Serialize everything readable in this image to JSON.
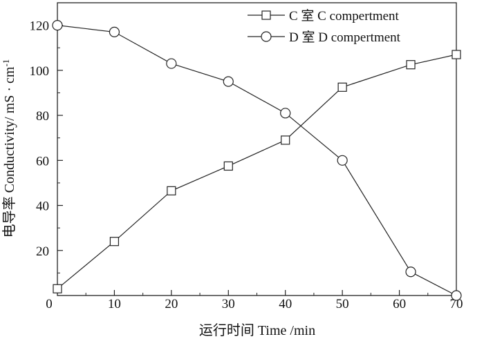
{
  "chart_data": {
    "type": "line",
    "xlabel": "运行时间 Time /min",
    "ylabel": "电导率 Conductivity/ mS · cm",
    "ylabel_superscript": "-1",
    "xlim": [
      0,
      70
    ],
    "ylim": [
      0,
      130
    ],
    "x_ticks": [
      "0",
      "10",
      "20",
      "30",
      "40",
      "50",
      "60",
      "70"
    ],
    "y_ticks": [
      "20",
      "40",
      "60",
      "80",
      "100",
      "120"
    ],
    "grid": false,
    "legend_position": "top-right",
    "series": [
      {
        "name": "C 室 C compertment",
        "marker": "square",
        "x": [
          0,
          10,
          20,
          30,
          40,
          50,
          62,
          70
        ],
        "y": [
          3,
          24,
          46.5,
          57.5,
          69,
          92.5,
          102.5,
          107
        ]
      },
      {
        "name": "D 室 D compertment",
        "marker": "circle",
        "x": [
          0,
          10,
          20,
          30,
          40,
          50,
          62,
          70
        ],
        "y": [
          120,
          117,
          103,
          95,
          81,
          60,
          10.5,
          0
        ]
      }
    ]
  }
}
